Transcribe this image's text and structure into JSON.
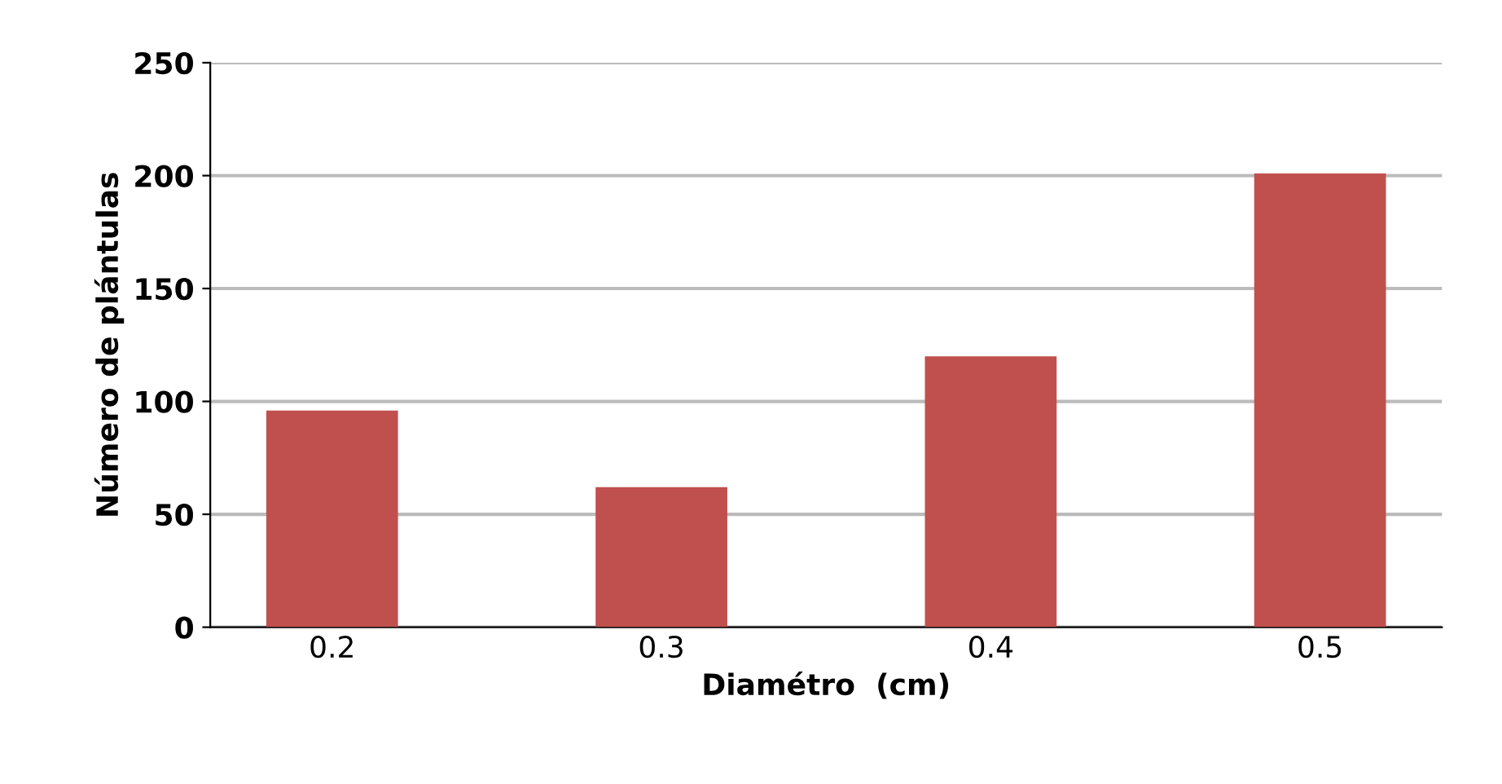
{
  "chart_data": {
    "type": "bar",
    "xlabel": "Diamétro  (cm)",
    "ylabel": "Número de plántulas",
    "categories": [
      "0.2",
      "0.3",
      "0.4",
      "0.5"
    ],
    "series": [
      {
        "color": "#c0504d",
        "values": [
          96,
          62,
          120,
          201
        ]
      }
    ],
    "ylim": [
      0,
      250
    ],
    "yticks": [
      0,
      50,
      100,
      150,
      200,
      250
    ],
    "grid": "y",
    "legend": false
  }
}
